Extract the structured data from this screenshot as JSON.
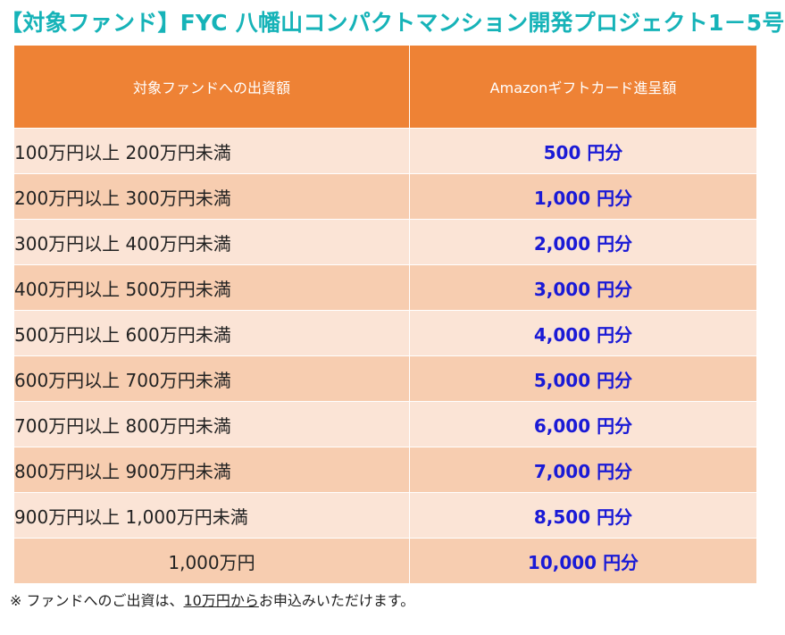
{
  "title": "【対象ファンド】FYC 八幡山コンパクトマンション開発プロジェクト1－5号",
  "table": {
    "headers": [
      "対象ファンドへの出資額",
      "Amazonギフトカード進呈額"
    ],
    "rows": [
      {
        "range": "100万円以上 200万円未満",
        "gift": "500 円分"
      },
      {
        "range": "200万円以上 300万円未満",
        "gift": "1,000 円分"
      },
      {
        "range": "300万円以上 400万円未満",
        "gift": "2,000 円分"
      },
      {
        "range": "400万円以上 500万円未満",
        "gift": "3,000 円分"
      },
      {
        "range": "500万円以上 600万円未満",
        "gift": "4,000 円分"
      },
      {
        "range": "600万円以上 700万円未満",
        "gift": "5,000 円分"
      },
      {
        "range": "700万円以上 800万円未満",
        "gift": "6,000 円分"
      },
      {
        "range": "800万円以上 900万円未満",
        "gift": "7,000 円分"
      },
      {
        "range": "900万円以上 1,000万円未満",
        "gift": "8,500 円分"
      },
      {
        "range": "1,000万円",
        "gift": "10,000 円分"
      }
    ]
  },
  "note": {
    "prefix": "※ ファンドへのご出資は、",
    "underlined": "10万円から",
    "suffix": "お申込みいただけます。"
  },
  "colors": {
    "title": "#16b3b8",
    "header_bg": "#ee8235",
    "row_light": "#fbe4d6",
    "row_dark": "#f7cdb0",
    "gift_text": "#1a1ad6"
  }
}
